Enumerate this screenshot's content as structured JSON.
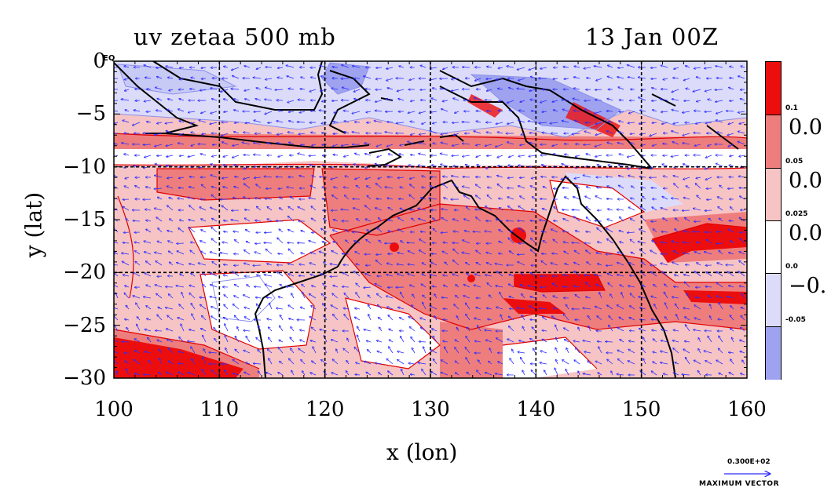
{
  "title_left": "uv zetaa 500 mb",
  "title_right": "13 Jan 00Z",
  "eq_label": "EQ",
  "chart_data": {
    "type": "map",
    "xlabel": "x (lon)",
    "ylabel": "y (lat)",
    "xlim": [
      100,
      160
    ],
    "ylim": [
      -30,
      0
    ],
    "x_ticks": [
      "100",
      "110",
      "120",
      "130",
      "140",
      "150",
      "160"
    ],
    "y_ticks": [
      "0",
      "−5",
      "−10",
      "−15",
      "−20",
      "−25",
      "−30"
    ],
    "x_tick_values": [
      100,
      110,
      120,
      130,
      140,
      150,
      160
    ],
    "y_tick_values": [
      0,
      -5,
      -10,
      -15,
      -20,
      -25,
      -30
    ],
    "grid_lon": [
      110,
      120,
      130,
      140,
      150
    ],
    "grid_lat": [
      -10,
      -20
    ],
    "colors": {
      "strong_negative": "#9fa3ef",
      "negative": "#dcdcfa",
      "zero": "#ffffff",
      "weak_positive": "#f6c4c4",
      "positive": "#ee7e7e",
      "strong_positive": "#ec0e0e",
      "vector": "#2b2bff",
      "coast": "#000000",
      "contour": "#e00000"
    },
    "colorbar": {
      "levels_small": [
        "0.1",
        "0.05",
        "0.025",
        "0.0",
        "-0.05"
      ],
      "levels_big": [
        "0.0",
        "0.0",
        "0.0",
        "−0."
      ],
      "fill_colors": [
        "#ec0e0e",
        "#ee7e7e",
        "#f6c4c4",
        "#ffffff",
        "#dcdcfa",
        "#9fa3ef"
      ]
    },
    "max_vector": {
      "value": "0.300E+02",
      "label": "MAXIMUM  VECTOR"
    }
  }
}
